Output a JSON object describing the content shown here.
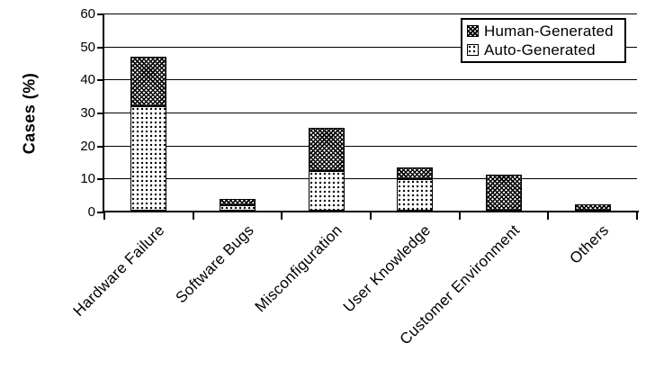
{
  "chart_data": {
    "type": "bar",
    "stacked": true,
    "title": "",
    "ylabel": "Cases (%)",
    "xlabel": "",
    "ylim": [
      0,
      60
    ],
    "yticks": [
      0,
      10,
      20,
      30,
      40,
      50,
      60
    ],
    "grid": true,
    "legend_position": "top-right",
    "categories": [
      "Hardware Failure",
      "Software Bugs",
      "Misconfiguration",
      "User Knowledge",
      "Customer Environment",
      "Others"
    ],
    "series": [
      {
        "name": "Human-Generated",
        "pattern": "dark-crosshatch",
        "values": [
          15,
          2,
          13,
          3.5,
          11,
          2
        ]
      },
      {
        "name": "Auto-Generated",
        "pattern": "light-dots",
        "values": [
          31.5,
          1.5,
          12,
          9.5,
          0,
          0
        ]
      }
    ],
    "colors": {
      "foreground": "#000000",
      "background": "#ffffff"
    }
  }
}
